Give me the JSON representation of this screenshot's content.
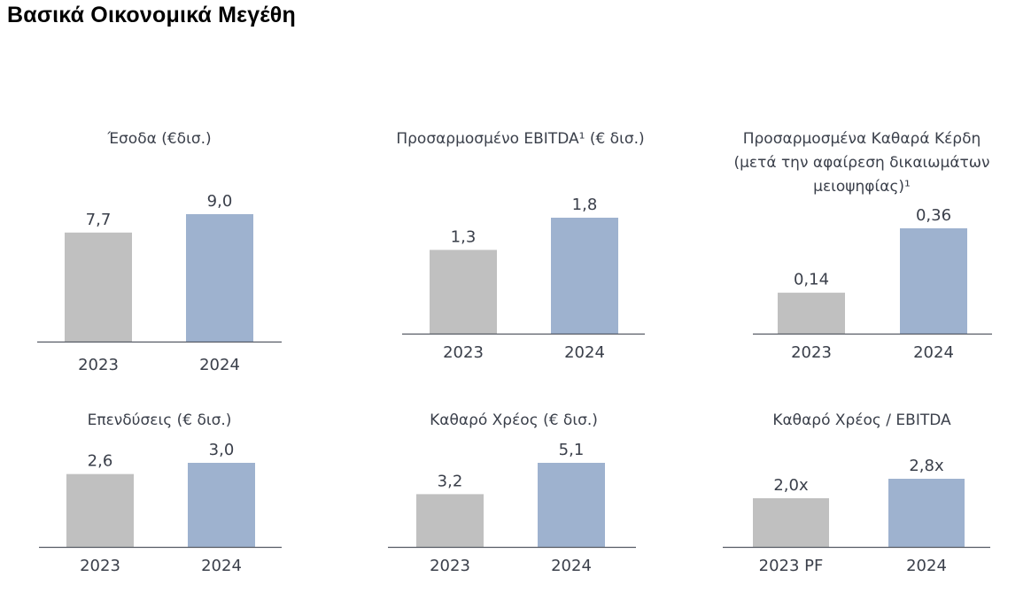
{
  "page": {
    "title": "Βασικά Οικονομικά Μεγέθη"
  },
  "colors": {
    "previous": "#c0c0c0",
    "current": "#9eb2cf",
    "axis": "#555a63",
    "text": "#3a3f4a"
  },
  "chart_data": [
    {
      "type": "bar",
      "title_lines": [
        "Έσοδα (€δισ.)"
      ],
      "categories": [
        "2023",
        "2024"
      ],
      "values": [
        7.7,
        9.0
      ],
      "labels": [
        "7,7",
        "9,0"
      ],
      "ylim": [
        0,
        9.0
      ]
    },
    {
      "type": "bar",
      "title_lines": [
        "Προσαρμοσμένο EBITDA¹ (€ δισ.)"
      ],
      "categories": [
        "2023",
        "2024"
      ],
      "values": [
        1.3,
        1.8
      ],
      "labels": [
        "1,3",
        "1,8"
      ],
      "ylim": [
        0,
        1.8
      ]
    },
    {
      "type": "bar",
      "title_lines": [
        "Προσαρμοσμένα Καθαρά Κέρδη",
        "(μετά την αφαίρεση δικαιωμάτων",
        "μειοψηφίας)¹"
      ],
      "categories": [
        "2023",
        "2024"
      ],
      "values": [
        0.14,
        0.36
      ],
      "labels": [
        "0,14",
        "0,36"
      ],
      "ylim": [
        0,
        0.36
      ]
    },
    {
      "type": "bar",
      "title_lines": [
        "Επενδύσεις (€ δισ.)"
      ],
      "categories": [
        "2023",
        "2024"
      ],
      "values": [
        2.6,
        3.0
      ],
      "labels": [
        "2,6",
        "3,0"
      ],
      "ylim": [
        0,
        3.0
      ]
    },
    {
      "type": "bar",
      "title_lines": [
        "Καθαρό Χρέος (€ δισ.)"
      ],
      "categories": [
        "2023",
        "2024"
      ],
      "values": [
        3.2,
        5.1
      ],
      "labels": [
        "3,2",
        "5,1"
      ],
      "ylim": [
        0,
        5.1
      ]
    },
    {
      "type": "bar",
      "title_lines": [
        "Καθαρό Χρέος / EBITDA"
      ],
      "categories": [
        "2023 PF",
        "2024"
      ],
      "values": [
        2.0,
        2.8
      ],
      "labels": [
        "2,0x",
        "2,8x"
      ],
      "ylim": [
        0,
        2.8
      ]
    }
  ]
}
